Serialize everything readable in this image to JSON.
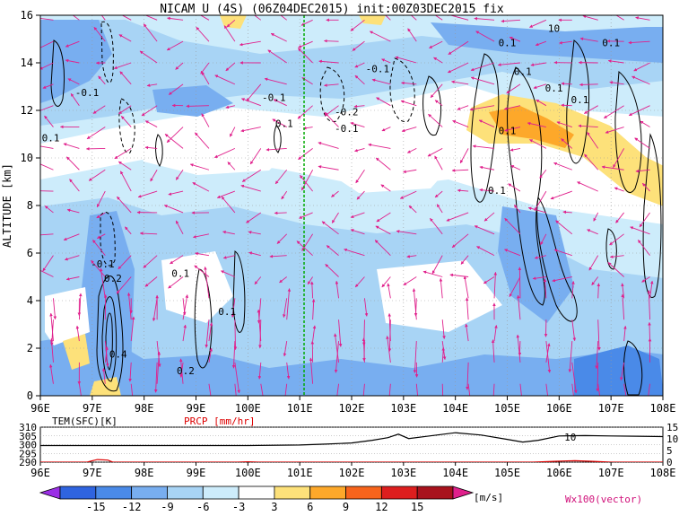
{
  "chart_data": [
    {
      "type": "heatmap",
      "title": "NICAM U (4S) (06Z04DEC2015) init:00Z03DEC2015 fix",
      "ylabel": "ALTITUDE [km]",
      "xlabel": "",
      "x_ticks": [
        "96E",
        "97E",
        "98E",
        "99E",
        "100E",
        "101E",
        "102E",
        "103E",
        "104E",
        "105E",
        "106E",
        "107E",
        "108E"
      ],
      "xlim": [
        96,
        108
      ],
      "y_ticks": [
        "0",
        "2",
        "4",
        "6",
        "8",
        "10",
        "12",
        "14",
        "16"
      ],
      "ylim": [
        0,
        16
      ],
      "grid": true,
      "marker_line": {
        "lon": 101,
        "color": "#00aa00"
      },
      "contour_labels": [
        {
          "text": "-0.1",
          "lon": 96.9,
          "alt": 12.6
        },
        {
          "text": "0.1",
          "lon": 96.2,
          "alt": 10.7
        },
        {
          "text": "-0.1",
          "lon": 100.5,
          "alt": 12.4
        },
        {
          "text": "0.1",
          "lon": 100.7,
          "alt": 11.3
        },
        {
          "text": "-0.1",
          "lon": 102.5,
          "alt": 13.6
        },
        {
          "text": "-0.2",
          "lon": 101.9,
          "alt": 11.8
        },
        {
          "text": "-0.1",
          "lon": 101.9,
          "alt": 11.1
        },
        {
          "text": "0.1",
          "lon": 105.0,
          "alt": 14.7
        },
        {
          "text": "0.1",
          "lon": 107.0,
          "alt": 14.7
        },
        {
          "text": "0.1",
          "lon": 105.3,
          "alt": 13.5
        },
        {
          "text": "0.1",
          "lon": 105.9,
          "alt": 12.8
        },
        {
          "text": "0.1",
          "lon": 106.4,
          "alt": 12.3
        },
        {
          "text": "0.1",
          "lon": 105.0,
          "alt": 11.0
        },
        {
          "text": "0.1",
          "lon": 104.8,
          "alt": 8.5
        },
        {
          "text": "-0.1",
          "lon": 97.2,
          "alt": 5.4
        },
        {
          "text": "0.2",
          "lon": 97.4,
          "alt": 4.8
        },
        {
          "text": "0.1",
          "lon": 98.7,
          "alt": 5.0
        },
        {
          "text": "0.1",
          "lon": 99.6,
          "alt": 3.4
        },
        {
          "text": "0.4",
          "lon": 97.5,
          "alt": 1.6
        },
        {
          "text": "0.2",
          "lon": 98.8,
          "alt": 0.9
        },
        {
          "text": "10",
          "lon": 105.9,
          "alt": 15.3
        }
      ],
      "colorbar": {
        "ticks": [
          "-15",
          "-12",
          "-9",
          "-6",
          "-3",
          "3",
          "6",
          "9",
          "12",
          "15"
        ],
        "unit": "[m/s]",
        "colors": [
          "#9b2fe6",
          "#2f64e0",
          "#4a8ae8",
          "#78aef0",
          "#a8d4f5",
          "#cdecfb",
          "#ffffff",
          "#fde17a",
          "#fda82a",
          "#f7641c",
          "#dd1e1e",
          "#a8121d",
          "#e0208c"
        ]
      },
      "vector_label": "Wx100(vector)"
    },
    {
      "type": "line",
      "series": [
        {
          "name": "TEM(SFC)[K]",
          "color": "#000000",
          "x": [
            96,
            97,
            98,
            99,
            100,
            101,
            101.5,
            102,
            102.4,
            102.7,
            102.9,
            103.1,
            103.5,
            104,
            104.5,
            105,
            105.3,
            105.6,
            106,
            106.5,
            107,
            107.5,
            108
          ],
          "values": [
            299.5,
            299.5,
            299.5,
            299.5,
            299.5,
            299.8,
            300.3,
            301.0,
            302.5,
            304.0,
            306.0,
            303.5,
            305.0,
            306.8,
            305.5,
            303.0,
            301.5,
            302.5,
            305.0,
            305.2,
            305.0,
            304.8,
            304.6
          ]
        },
        {
          "name": "PRCP [mm/hr]",
          "color": "#dd0000",
          "x": [
            96,
            96.9,
            97.0,
            97.1,
            97.3,
            97.4,
            98,
            99,
            99.8,
            100,
            100.2,
            101,
            103,
            104,
            105.5,
            105.9,
            106.1,
            106.3,
            106.6,
            107,
            108
          ],
          "values": [
            0,
            0,
            0.6,
            1.1,
            0.9,
            0,
            0,
            0,
            0,
            0.15,
            0,
            0,
            0,
            0,
            0,
            0.35,
            0.5,
            0.6,
            0.4,
            0,
            0
          ]
        }
      ],
      "x_ticks": [
        "96E",
        "97E",
        "98E",
        "99E",
        "100E",
        "101E",
        "102E",
        "103E",
        "104E",
        "105E",
        "106E",
        "107E",
        "108E"
      ],
      "xlim": [
        96,
        108
      ],
      "y_left_ticks": [
        "310",
        "305",
        "300",
        "295",
        "290"
      ],
      "y_left_range": [
        290,
        310
      ],
      "y_right_ticks": [
        "15",
        "10",
        "5",
        "0"
      ],
      "y_right_range": [
        0,
        15
      ],
      "annotation": {
        "text": "10",
        "lon": 106.1
      }
    }
  ]
}
